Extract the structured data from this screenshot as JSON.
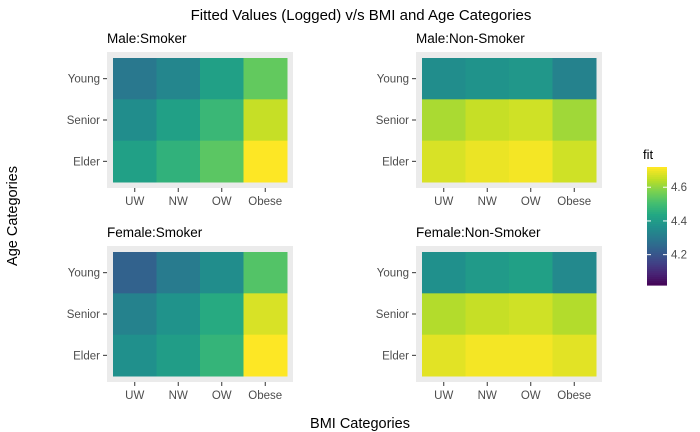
{
  "chart_data": {
    "type": "heatmap",
    "title": "Fitted Values (Logged) v/s BMI and Age Categories",
    "xlabel": "BMI Categories",
    "ylabel": "Age Categories",
    "x_categories": [
      "UW",
      "NW",
      "OW",
      "Obese"
    ],
    "y_categories": [
      "Young",
      "Senior",
      "Elder"
    ],
    "legend": {
      "title": "fit",
      "placement": "right",
      "min": 4.02,
      "max": 4.72,
      "ticks": [
        4.2,
        4.4,
        4.6
      ],
      "tick_labels": [
        "4.2",
        "4.4",
        "4.6"
      ]
    },
    "panels": [
      {
        "title": "Male:Smoker",
        "values": [
          [
            4.3,
            4.34,
            4.42,
            4.55
          ],
          [
            4.36,
            4.42,
            4.49,
            4.66
          ],
          [
            4.42,
            4.47,
            4.54,
            4.72
          ]
        ]
      },
      {
        "title": "Male:Non-Smoker",
        "values": [
          [
            4.36,
            4.38,
            4.39,
            4.33
          ],
          [
            4.63,
            4.66,
            4.67,
            4.62
          ],
          [
            4.68,
            4.7,
            4.71,
            4.67
          ]
        ]
      },
      {
        "title": "Female:Smoker",
        "values": [
          [
            4.24,
            4.31,
            4.36,
            4.53
          ],
          [
            4.33,
            4.38,
            4.45,
            4.68
          ],
          [
            4.37,
            4.41,
            4.48,
            4.72
          ]
        ]
      },
      {
        "title": "Female:Non-Smoker",
        "values": [
          [
            4.37,
            4.4,
            4.42,
            4.35
          ],
          [
            4.64,
            4.66,
            4.67,
            4.64
          ],
          [
            4.69,
            4.71,
            4.71,
            4.69
          ]
        ]
      }
    ]
  }
}
